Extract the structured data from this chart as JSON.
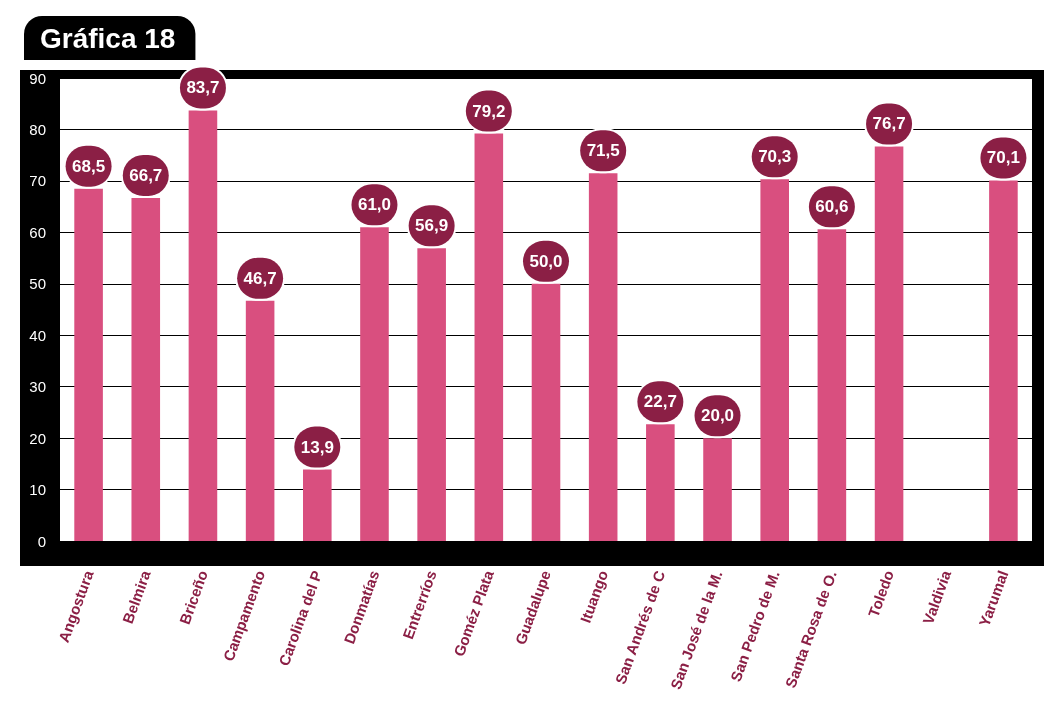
{
  "chart_data": {
    "type": "bar",
    "title": "Gráfica 18",
    "categories": [
      "Angostura",
      "Belmira",
      "Briceño",
      "Campamento",
      "Carolina del P",
      "Donmatías",
      "Entrerríos",
      "Goméz Plata",
      "Guadalupe",
      "Ituango",
      "San Andrés de C",
      "San José de la M.",
      "San Pedro de M.",
      "Santa Rosa de O.",
      "Toledo",
      "Valdivia",
      "Yarumal"
    ],
    "values": [
      68.5,
      66.7,
      83.7,
      46.7,
      13.9,
      61.0,
      56.9,
      79.2,
      50.0,
      71.5,
      22.7,
      20.0,
      70.3,
      60.6,
      76.7,
      null,
      70.1
    ],
    "value_labels": [
      "68,5",
      "66,7",
      "83,7",
      "46,7",
      "13,9",
      "61,0",
      "56,9",
      "79,2",
      "50,0",
      "71,5",
      "22,7",
      "20,0",
      "70,3",
      "60,6",
      "76,7",
      null,
      "70,1"
    ],
    "color": "#d94f7f",
    "ylim": [
      0,
      90
    ],
    "yticks": [
      0,
      10,
      20,
      30,
      40,
      50,
      60,
      70,
      80,
      90
    ],
    "grid": "y"
  }
}
